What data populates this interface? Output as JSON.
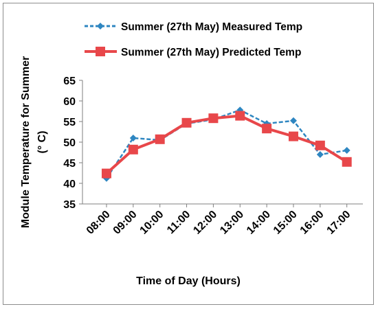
{
  "chart_data": {
    "type": "line",
    "categories": [
      "08:00",
      "09:00",
      "10:00",
      "11:00",
      "12:00",
      "13:00",
      "14:00",
      "15:00",
      "16:00",
      "17:00"
    ],
    "series": [
      {
        "name": "Summer (27th May) Measured Temp",
        "values": [
          41.2,
          51.0,
          50.5,
          54.5,
          55.5,
          57.8,
          54.5,
          55.2,
          47.0,
          48.0
        ],
        "color": "#2e86c1",
        "line_style": "dashed",
        "marker": "diamond"
      },
      {
        "name": "Summer (27th May) Predicted Temp",
        "values": [
          42.4,
          48.2,
          50.7,
          54.7,
          55.8,
          56.4,
          53.3,
          51.4,
          49.2,
          45.2
        ],
        "color": "#e8474a",
        "line_style": "solid",
        "marker": "square"
      }
    ],
    "title": "",
    "xlabel": "Time of Day (Hours)",
    "ylabel_line1": "Module Temperature for Summer",
    "ylabel_line2": "(° C)",
    "ylim": [
      35,
      65
    ],
    "yticks": [
      35,
      40,
      45,
      50,
      55,
      60,
      65
    ],
    "grid": false,
    "legend": "top"
  }
}
